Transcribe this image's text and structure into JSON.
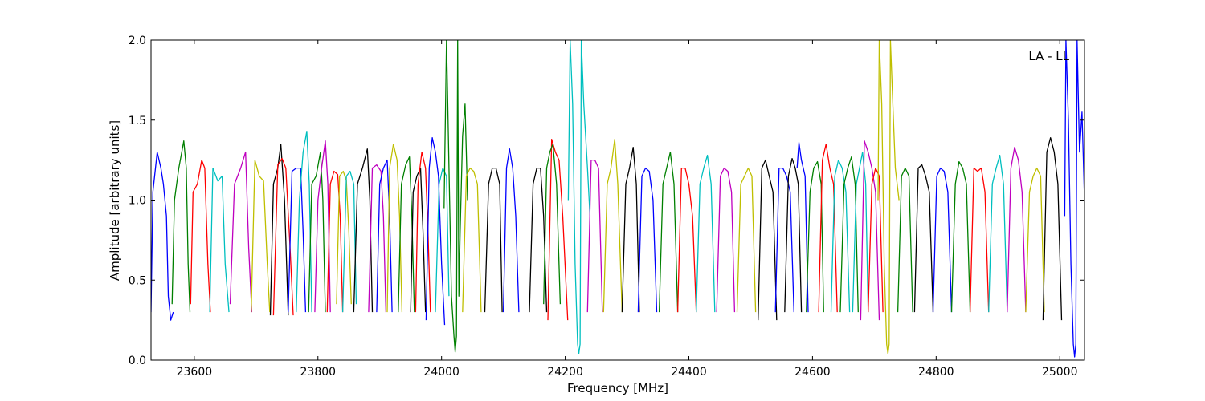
{
  "chart_data": {
    "type": "line",
    "title": "",
    "xlabel": "Frequency [MHz]",
    "ylabel": "Amplitude [arbitrary units]",
    "annotation": "LA - LL",
    "annotation_position": "top-right",
    "xlim": [
      23530,
      25040
    ],
    "ylim": [
      0.0,
      2.0
    ],
    "x_ticks": [
      23600,
      23800,
      24000,
      24200,
      24400,
      24600,
      24800,
      25000
    ],
    "x_tick_labels": [
      "23600",
      "23800",
      "24000",
      "24200",
      "24400",
      "24600",
      "24800",
      "25000"
    ],
    "y_ticks": [
      0.0,
      0.5,
      1.0,
      1.5,
      2.0
    ],
    "y_tick_labels": [
      "0.0",
      "0.5",
      "1.0",
      "1.5",
      "2.0"
    ],
    "grid": false,
    "legend": "none",
    "color_cycle": [
      "#0000ff",
      "#008000",
      "#ff0000",
      "#00bfbf",
      "#bf00bf",
      "#bfbf00",
      "#000000"
    ],
    "series": [
      {
        "color": "#0000ff",
        "x": [
          23530,
          23533,
          23540,
          23546,
          23550,
          23555,
          23558,
          23562,
          23566
        ],
        "y": [
          0.3,
          1.05,
          1.3,
          1.2,
          1.1,
          0.9,
          0.4,
          0.25,
          0.3
        ]
      },
      {
        "color": "#008000",
        "x": [
          23564,
          23568,
          23575,
          23583,
          23587,
          23590,
          23593
        ],
        "y": [
          0.35,
          1.0,
          1.2,
          1.37,
          1.2,
          0.6,
          0.3
        ]
      },
      {
        "color": "#ff0000",
        "x": [
          23594,
          23598,
          23605,
          23612,
          23617,
          23622,
          23626
        ],
        "y": [
          0.35,
          1.05,
          1.1,
          1.25,
          1.2,
          0.6,
          0.3
        ]
      },
      {
        "color": "#00bfbf",
        "x": [
          23625,
          23630,
          23638,
          23645,
          23650,
          23656
        ],
        "y": [
          0.3,
          1.2,
          1.12,
          1.15,
          0.6,
          0.3
        ]
      },
      {
        "color": "#bf00bf",
        "x": [
          23658,
          23665,
          23675,
          23683,
          23688,
          23693
        ],
        "y": [
          0.35,
          1.1,
          1.2,
          1.3,
          0.7,
          0.3
        ]
      },
      {
        "color": "#bfbf00",
        "x": [
          23692,
          23698,
          23705,
          23712,
          23718,
          23722
        ],
        "y": [
          0.3,
          1.25,
          1.15,
          1.12,
          0.6,
          0.3
        ]
      },
      {
        "color": "#000000",
        "x": [
          23723,
          23728,
          23735,
          23740,
          23746,
          23752
        ],
        "y": [
          0.28,
          1.1,
          1.2,
          1.35,
          1.0,
          0.28
        ]
      },
      {
        "color": "#ff0000",
        "x": [
          23728,
          23735,
          23742,
          23748,
          23755,
          23760
        ],
        "y": [
          0.28,
          1.22,
          1.26,
          1.2,
          0.7,
          0.28
        ]
      },
      {
        "color": "#0000ff",
        "x": [
          23752,
          23758,
          23765,
          23772,
          23776,
          23780
        ],
        "y": [
          0.3,
          1.18,
          1.2,
          1.2,
          0.8,
          0.3
        ]
      },
      {
        "color": "#00bfbf",
        "x": [
          23765,
          23770,
          23776,
          23782,
          23786,
          23790
        ],
        "y": [
          0.3,
          1.0,
          1.3,
          1.43,
          1.1,
          0.3
        ]
      },
      {
        "color": "#008000",
        "x": [
          23785,
          23790,
          23797,
          23804,
          23808,
          23812
        ],
        "y": [
          0.3,
          1.1,
          1.15,
          1.3,
          1.0,
          0.3
        ]
      },
      {
        "color": "#bf00bf",
        "x": [
          23795,
          23800,
          23806,
          23812,
          23816,
          23820
        ],
        "y": [
          0.3,
          1.0,
          1.2,
          1.37,
          1.1,
          0.3
        ]
      },
      {
        "color": "#ff0000",
        "x": [
          23815,
          23820,
          23826,
          23832,
          23836,
          23840
        ],
        "y": [
          0.3,
          1.1,
          1.18,
          1.16,
          0.9,
          0.3
        ]
      },
      {
        "color": "#bfbf00",
        "x": [
          23830,
          23835,
          23841,
          23846,
          23850,
          23854
        ],
        "y": [
          0.35,
          1.15,
          1.18,
          1.12,
          0.8,
          0.35
        ]
      },
      {
        "color": "#00bfbf",
        "x": [
          23840,
          23846,
          23852,
          23858,
          23862
        ],
        "y": [
          0.3,
          1.15,
          1.18,
          1.1,
          0.35
        ]
      },
      {
        "color": "#000000",
        "x": [
          23858,
          23864,
          23872,
          23880,
          23884,
          23888
        ],
        "y": [
          0.3,
          1.1,
          1.2,
          1.32,
          1.0,
          0.3
        ]
      },
      {
        "color": "#bf00bf",
        "x": [
          23882,
          23888,
          23895,
          23902,
          23906,
          23910
        ],
        "y": [
          0.3,
          1.2,
          1.22,
          1.18,
          0.9,
          0.3
        ]
      },
      {
        "color": "#0000ff",
        "x": [
          23895,
          23900,
          23906,
          23912,
          23916,
          23920
        ],
        "y": [
          0.3,
          1.1,
          1.2,
          1.25,
          0.9,
          0.3
        ]
      },
      {
        "color": "#bfbf00",
        "x": [
          23912,
          23916,
          23922,
          23928,
          23932,
          23936
        ],
        "y": [
          0.3,
          1.2,
          1.35,
          1.25,
          0.9,
          0.3
        ]
      },
      {
        "color": "#008000",
        "x": [
          23930,
          23935,
          23942,
          23948,
          23952,
          23956
        ],
        "y": [
          0.3,
          1.1,
          1.22,
          1.27,
          0.9,
          0.3
        ]
      },
      {
        "color": "#000000",
        "x": [
          23950,
          23954,
          23960,
          23966,
          23970,
          23974
        ],
        "y": [
          0.3,
          1.05,
          1.15,
          1.2,
          0.8,
          0.3
        ]
      },
      {
        "color": "#ff0000",
        "x": [
          23958,
          23962,
          23968,
          23974,
          23978,
          23982
        ],
        "y": [
          0.3,
          1.1,
          1.3,
          1.2,
          0.8,
          0.3
        ]
      },
      {
        "color": "#0000ff",
        "x": [
          23975,
          23980,
          23985,
          23990,
          23995,
          24000,
          24005
        ],
        "y": [
          0.25,
          1.2,
          1.39,
          1.3,
          1.15,
          0.6,
          0.22
        ]
      },
      {
        "color": "#00bfbf",
        "x": [
          23990,
          23996,
          24002,
          24008,
          24012
        ],
        "y": [
          0.3,
          1.1,
          1.2,
          1.15,
          0.4
        ]
      },
      {
        "color": "#008000",
        "x": [
          24004,
          24008,
          24010,
          24012,
          24016,
          24020,
          24022,
          24024,
          24026,
          24028,
          24030,
          24034,
          24038,
          24042
        ],
        "y": [
          0.95,
          2.0,
          1.6,
          1.2,
          0.4,
          0.15,
          0.05,
          0.15,
          2.0,
          0.4,
          0.8,
          1.4,
          1.6,
          1.0
        ]
      },
      {
        "color": "#bfbf00",
        "x": [
          24034,
          24040,
          24046,
          24052,
          24058,
          24064
        ],
        "y": [
          0.3,
          1.15,
          1.2,
          1.18,
          1.1,
          0.3
        ]
      },
      {
        "color": "#000000",
        "x": [
          24070,
          24076,
          24082,
          24088,
          24094,
          24098
        ],
        "y": [
          0.3,
          1.1,
          1.2,
          1.2,
          1.1,
          0.3
        ]
      },
      {
        "color": "#0000ff",
        "x": [
          24100,
          24105,
          24110,
          24115,
          24120,
          24125
        ],
        "y": [
          0.3,
          1.2,
          1.32,
          1.2,
          0.9,
          0.3
        ]
      },
      {
        "color": "#000000",
        "x": [
          24142,
          24148,
          24154,
          24160,
          24165,
          24170
        ],
        "y": [
          0.3,
          1.1,
          1.2,
          1.2,
          0.9,
          0.3
        ]
      },
      {
        "color": "#ff0000",
        "x": [
          24172,
          24178,
          24184,
          24190,
          24196,
          24204
        ],
        "y": [
          0.25,
          1.38,
          1.3,
          1.25,
          0.9,
          0.25
        ]
      },
      {
        "color": "#008000",
        "x": [
          24165,
          24170,
          24175,
          24180,
          24186,
          24192
        ],
        "y": [
          0.35,
          1.2,
          1.3,
          1.35,
          1.1,
          0.35
        ]
      },
      {
        "color": "#00bfbf",
        "x": [
          24205,
          24208,
          24212,
          24216,
          24220,
          24222,
          24224,
          24226,
          24230,
          24236,
          24240
        ],
        "y": [
          1.0,
          2.0,
          1.6,
          0.6,
          0.1,
          0.04,
          0.1,
          2.0,
          1.6,
          1.2,
          0.9
        ]
      },
      {
        "color": "#bf00bf",
        "x": [
          24236,
          24242,
          24248,
          24254,
          24260
        ],
        "y": [
          0.3,
          1.25,
          1.25,
          1.2,
          0.3
        ]
      },
      {
        "color": "#bfbf00",
        "x": [
          24262,
          24268,
          24274,
          24280,
          24285,
          24292
        ],
        "y": [
          0.3,
          1.1,
          1.2,
          1.38,
          1.1,
          0.3
        ]
      },
      {
        "color": "#000000",
        "x": [
          24292,
          24298,
          24304,
          24310,
          24315,
          24320
        ],
        "y": [
          0.3,
          1.1,
          1.2,
          1.33,
          1.1,
          0.3
        ]
      },
      {
        "color": "#0000ff",
        "x": [
          24318,
          24324,
          24330,
          24336,
          24342,
          24348
        ],
        "y": [
          0.3,
          1.15,
          1.2,
          1.18,
          1.0,
          0.3
        ]
      },
      {
        "color": "#008000",
        "x": [
          24352,
          24358,
          24364,
          24370,
          24376,
          24382
        ],
        "y": [
          0.3,
          1.1,
          1.2,
          1.3,
          1.1,
          0.3
        ]
      },
      {
        "color": "#ff0000",
        "x": [
          24382,
          24388,
          24394,
          24400,
          24406,
          24412
        ],
        "y": [
          0.3,
          1.2,
          1.2,
          1.1,
          0.9,
          0.3
        ]
      },
      {
        "color": "#00bfbf",
        "x": [
          24412,
          24418,
          24424,
          24430,
          24436,
          24442
        ],
        "y": [
          0.3,
          1.1,
          1.2,
          1.28,
          1.1,
          0.3
        ]
      },
      {
        "color": "#bf00bf",
        "x": [
          24445,
          24451,
          24457,
          24463,
          24469,
          24474
        ],
        "y": [
          0.3,
          1.15,
          1.2,
          1.18,
          1.05,
          0.3
        ]
      },
      {
        "color": "#bfbf00",
        "x": [
          24478,
          24484,
          24490,
          24496,
          24502,
          24508
        ],
        "y": [
          0.3,
          1.1,
          1.15,
          1.2,
          1.15,
          0.3
        ]
      },
      {
        "color": "#000000",
        "x": [
          24512,
          24518,
          24524,
          24530,
          24536,
          24542
        ],
        "y": [
          0.25,
          1.2,
          1.25,
          1.15,
          1.05,
          0.25
        ]
      },
      {
        "color": "#0000ff",
        "x": [
          24540,
          24546,
          24552,
          24558,
          24564,
          24570
        ],
        "y": [
          0.3,
          1.2,
          1.2,
          1.15,
          1.05,
          0.3
        ]
      },
      {
        "color": "#000000",
        "x": [
          24555,
          24561,
          24567,
          24572,
          24577,
          24582
        ],
        "y": [
          0.3,
          1.15,
          1.26,
          1.2,
          1.1,
          0.3
        ]
      },
      {
        "color": "#0000ff",
        "x": [
          24575,
          24578,
          24582,
          24588,
          24593
        ],
        "y": [
          1.2,
          1.36,
          1.25,
          1.15,
          0.3
        ]
      },
      {
        "color": "#008000",
        "x": [
          24590,
          24596,
          24602,
          24608,
          24614,
          24618
        ],
        "y": [
          0.3,
          1.05,
          1.2,
          1.24,
          1.1,
          0.3
        ]
      },
      {
        "color": "#ff0000",
        "x": [
          24610,
          24616,
          24622,
          24628,
          24634,
          24640
        ],
        "y": [
          0.3,
          1.25,
          1.35,
          1.2,
          1.1,
          0.3
        ]
      },
      {
        "color": "#00bfbf",
        "x": [
          24630,
          24636,
          24642,
          24648,
          24654,
          24660
        ],
        "y": [
          0.3,
          1.15,
          1.25,
          1.2,
          1.05,
          0.3
        ]
      },
      {
        "color": "#008000",
        "x": [
          24645,
          24651,
          24657,
          24663,
          24669,
          24674
        ],
        "y": [
          0.3,
          1.1,
          1.2,
          1.27,
          1.1,
          0.3
        ]
      },
      {
        "color": "#00bfbf",
        "x": [
          24665,
          24671,
          24676,
          24681,
          24686,
          24690
        ],
        "y": [
          0.3,
          1.1,
          1.2,
          1.3,
          1.1,
          0.3
        ]
      },
      {
        "color": "#bf00bf",
        "x": [
          24678,
          24684,
          24690,
          24696,
          24702,
          24708
        ],
        "y": [
          0.25,
          1.37,
          1.3,
          1.2,
          1.05,
          0.25
        ]
      },
      {
        "color": "#ff0000",
        "x": [
          24690,
          24696,
          24702,
          24708,
          24714
        ],
        "y": [
          0.3,
          1.1,
          1.2,
          1.15,
          0.3
        ]
      },
      {
        "color": "#bfbf00",
        "x": [
          24706,
          24708,
          24712,
          24716,
          24720,
          24722,
          24724,
          24726,
          24730,
          24734,
          24740
        ],
        "y": [
          1.0,
          2.0,
          1.6,
          0.6,
          0.1,
          0.04,
          0.1,
          2.0,
          1.6,
          1.2,
          1.0
        ]
      },
      {
        "color": "#008000",
        "x": [
          24738,
          24744,
          24750,
          24756,
          24762
        ],
        "y": [
          0.3,
          1.15,
          1.2,
          1.15,
          0.3
        ]
      },
      {
        "color": "#000000",
        "x": [
          24765,
          24771,
          24777,
          24783,
          24789,
          24795
        ],
        "y": [
          0.3,
          1.2,
          1.22,
          1.15,
          1.05,
          0.3
        ]
      },
      {
        "color": "#0000ff",
        "x": [
          24795,
          24801,
          24807,
          24813,
          24819,
          24825
        ],
        "y": [
          0.3,
          1.15,
          1.2,
          1.18,
          1.05,
          0.3
        ]
      },
      {
        "color": "#008000",
        "x": [
          24825,
          24831,
          24837,
          24843,
          24849,
          24855
        ],
        "y": [
          0.3,
          1.1,
          1.24,
          1.2,
          1.1,
          0.3
        ]
      },
      {
        "color": "#ff0000",
        "x": [
          24855,
          24861,
          24867,
          24873,
          24879,
          24885
        ],
        "y": [
          0.3,
          1.2,
          1.18,
          1.2,
          1.05,
          0.3
        ]
      },
      {
        "color": "#00bfbf",
        "x": [
          24885,
          24891,
          24897,
          24903,
          24909,
          24915
        ],
        "y": [
          0.3,
          1.1,
          1.2,
          1.28,
          1.1,
          0.3
        ]
      },
      {
        "color": "#bf00bf",
        "x": [
          24915,
          24921,
          24927,
          24933,
          24939,
          24945
        ],
        "y": [
          0.3,
          1.2,
          1.33,
          1.25,
          1.05,
          0.3
        ]
      },
      {
        "color": "#bfbf00",
        "x": [
          24945,
          24951,
          24957,
          24963,
          24969,
          24975
        ],
        "y": [
          0.3,
          1.05,
          1.15,
          1.2,
          1.15,
          0.3
        ]
      },
      {
        "color": "#000000",
        "x": [
          24973,
          24979,
          24985,
          24991,
          24997,
          25003
        ],
        "y": [
          0.25,
          1.3,
          1.39,
          1.3,
          1.1,
          0.25
        ]
      },
      {
        "color": "#0000ff",
        "x": [
          25008,
          25010,
          25014,
          25018,
          25022,
          25024,
          25026,
          25028,
          25032,
          25036,
          25040
        ],
        "y": [
          0.9,
          2.0,
          1.5,
          0.6,
          0.1,
          0.02,
          0.1,
          2.0,
          1.3,
          1.55,
          1.0
        ]
      }
    ]
  }
}
